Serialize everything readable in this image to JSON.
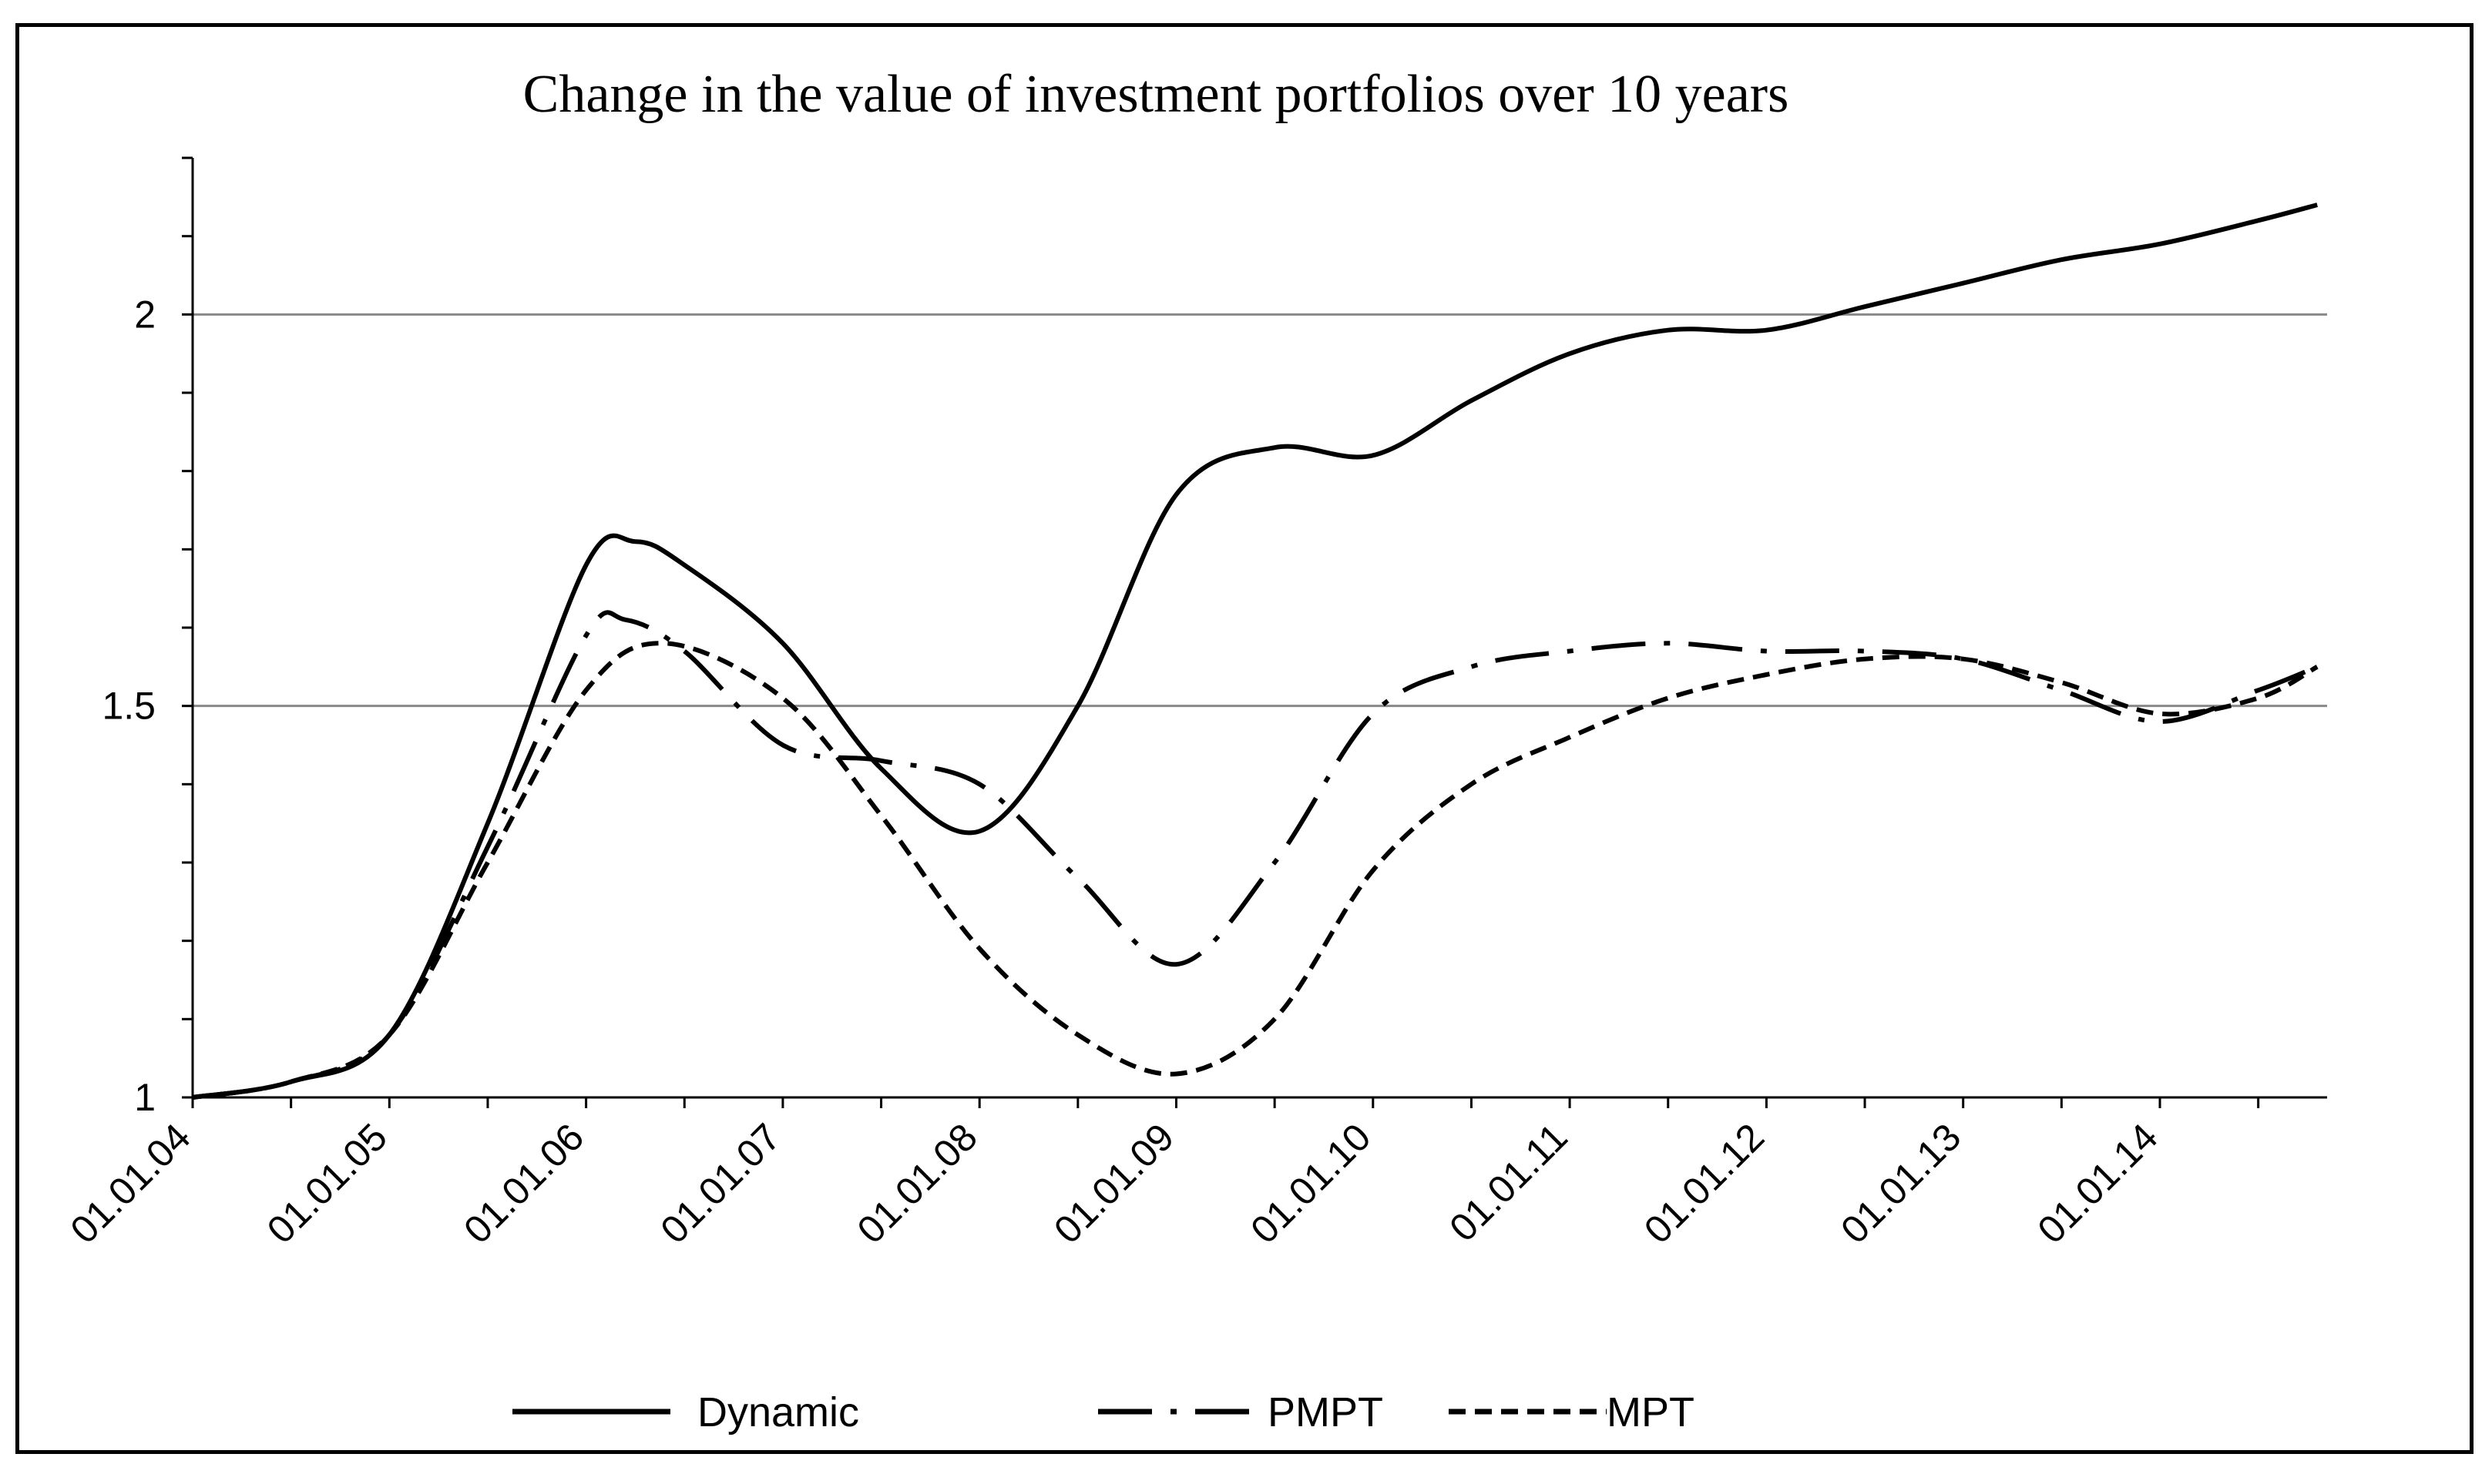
{
  "chart_data": {
    "type": "line",
    "title": "Change in the value of investment portfolios over 10 years",
    "xlabel": "",
    "ylabel": "",
    "x_ticks": [
      "01.01.04",
      "01.01.05",
      "01.01.06",
      "01.01.07",
      "01.01.08",
      "01.01.09",
      "01.01.10",
      "01.01.11",
      "01.01.12",
      "01.01.13",
      "01.01.14"
    ],
    "x_range": [
      0,
      10.85
    ],
    "y_ticks": [
      1,
      1.5,
      2
    ],
    "y_tick_labels": [
      "1",
      "1.5",
      "2"
    ],
    "ylim": [
      1,
      2.2
    ],
    "grid": "horizontal at 1.5 and 2",
    "legend_position": "bottom",
    "series": [
      {
        "name": "Dynamic",
        "style": "solid",
        "x": [
          0,
          0.5,
          1,
          1.5,
          2,
          2.25,
          2.5,
          3,
          3.5,
          4,
          4.5,
          5,
          5.5,
          6,
          6.5,
          7,
          7.5,
          8,
          8.5,
          9,
          9.5,
          10,
          10.5,
          10.8
        ],
        "values": [
          1.0,
          1.02,
          1.08,
          1.35,
          1.68,
          1.71,
          1.68,
          1.58,
          1.42,
          1.34,
          1.5,
          1.77,
          1.83,
          1.82,
          1.89,
          1.95,
          1.98,
          1.98,
          2.01,
          2.04,
          2.07,
          2.09,
          2.12,
          2.14
        ]
      },
      {
        "name": "PMPT",
        "style": "dashdot",
        "x": [
          0,
          0.5,
          1,
          1.5,
          2,
          2.2,
          2.5,
          3,
          3.5,
          4,
          4.5,
          5,
          5.5,
          6,
          6.5,
          7,
          7.5,
          8,
          8.5,
          9,
          9.5,
          10,
          10.5,
          10.8
        ],
        "values": [
          1.0,
          1.02,
          1.08,
          1.32,
          1.59,
          1.61,
          1.57,
          1.45,
          1.43,
          1.4,
          1.28,
          1.17,
          1.3,
          1.49,
          1.55,
          1.57,
          1.58,
          1.57,
          1.57,
          1.56,
          1.52,
          1.48,
          1.52,
          1.55
        ]
      },
      {
        "name": "MPT",
        "style": "dashed",
        "x": [
          0,
          0.5,
          1,
          1.5,
          2,
          2.4,
          3,
          3.5,
          4,
          4.5,
          5,
          5.5,
          6,
          6.5,
          7,
          7.5,
          8,
          8.5,
          9,
          9.5,
          10,
          10.5,
          10.8
        ],
        "values": [
          1.0,
          1.02,
          1.08,
          1.3,
          1.52,
          1.58,
          1.51,
          1.36,
          1.19,
          1.08,
          1.03,
          1.1,
          1.29,
          1.4,
          1.46,
          1.51,
          1.54,
          1.56,
          1.56,
          1.53,
          1.49,
          1.51,
          1.55
        ]
      }
    ]
  }
}
